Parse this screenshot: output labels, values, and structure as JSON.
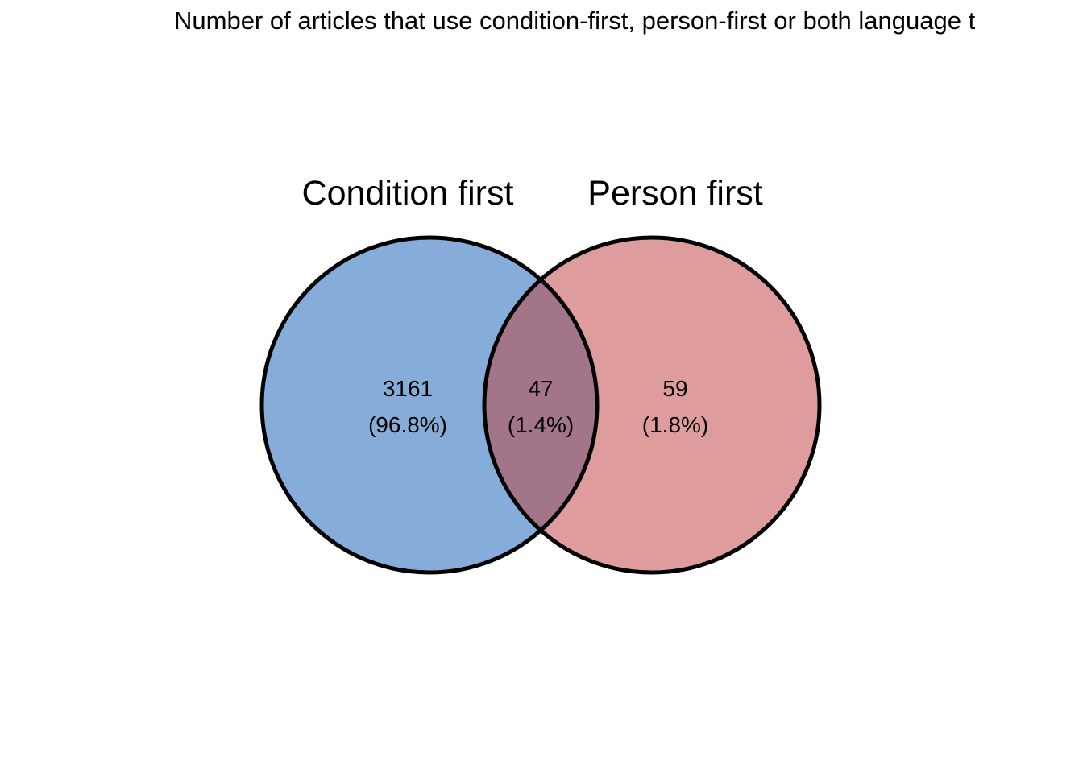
{
  "title": "Number of articles that use condition-first, person-first or both language t",
  "sets": [
    {
      "name": "Condition first",
      "color": "#86ADDA"
    },
    {
      "name": "Person first",
      "color": "#DF9C9D"
    }
  ],
  "regions": {
    "condition_only": {
      "count": "3161",
      "percent": "(96.8%)"
    },
    "both": {
      "count": "47",
      "percent": "(1.4%)",
      "color": "#A27688"
    },
    "person_only": {
      "count": "59",
      "percent": "(1.8%)"
    }
  },
  "outline_color": "#000000"
}
